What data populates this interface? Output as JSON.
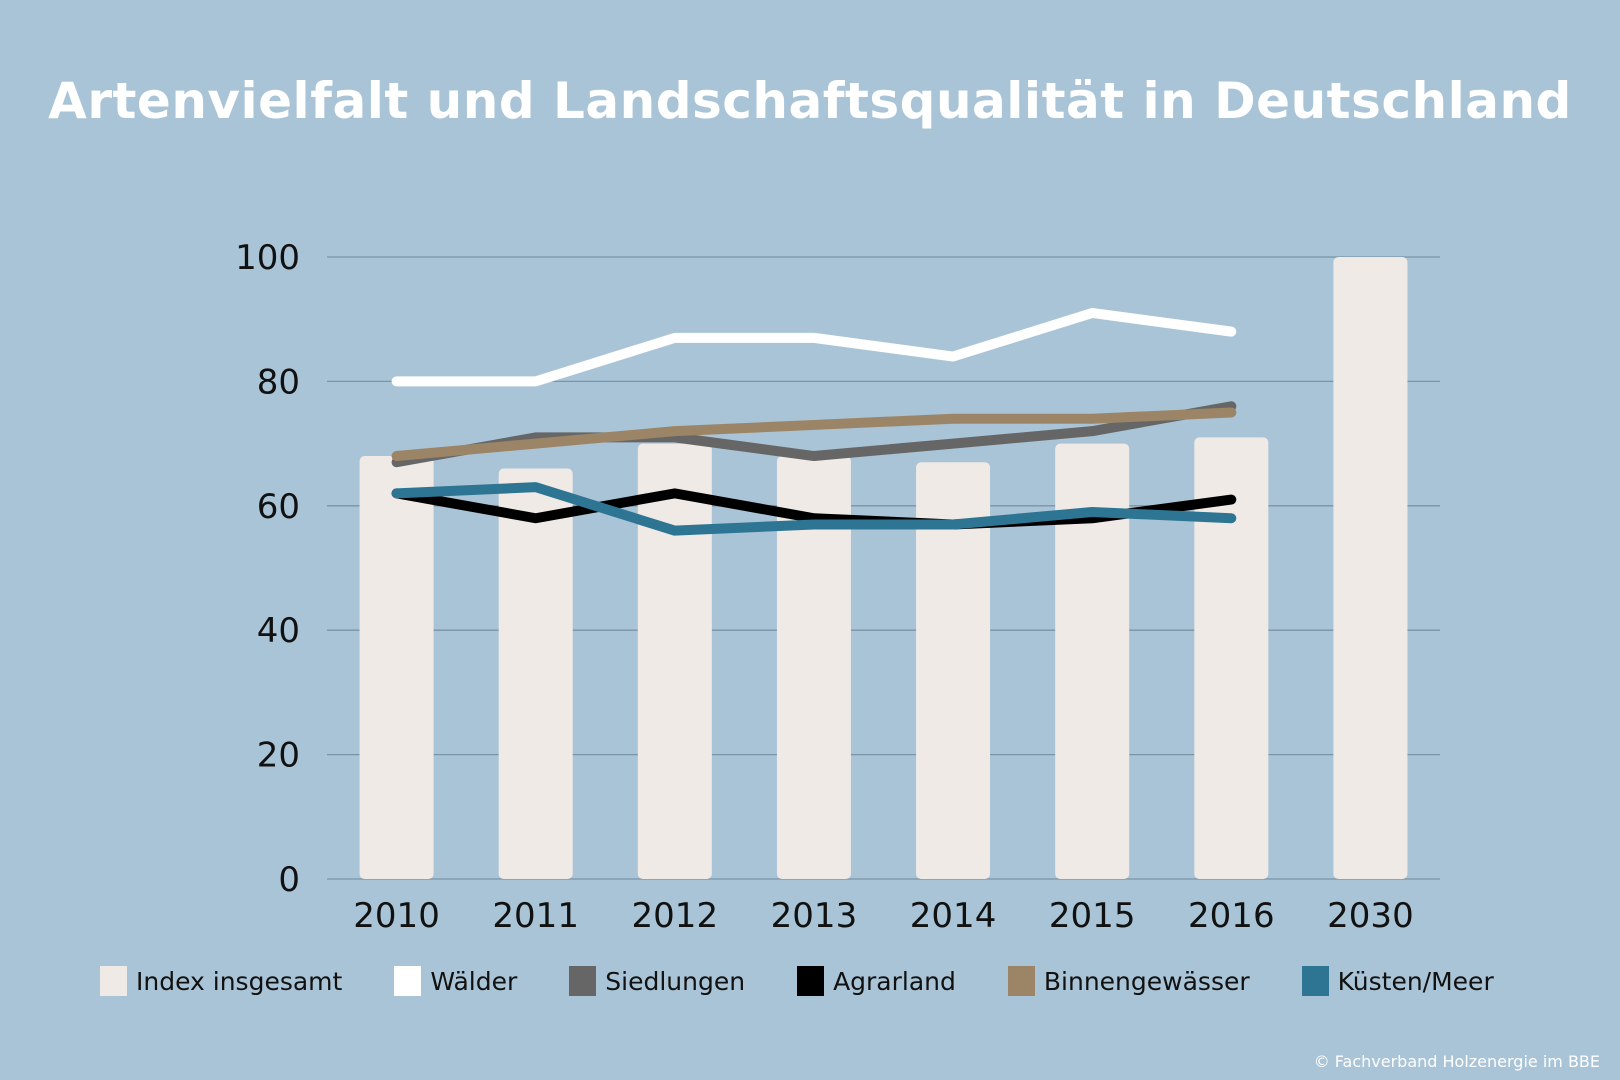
{
  "chart_data": {
    "type": "bar",
    "title": "Artenvielfalt und Landschaftsqualität in Deutschland",
    "xlabel": "",
    "ylabel": "",
    "ylim": [
      0,
      100
    ],
    "yticks": [
      "0",
      "20",
      "40",
      "60",
      "80",
      "100"
    ],
    "grid": true,
    "categories": [
      "2010",
      "2011",
      "2012",
      "2013",
      "2014",
      "2015",
      "2016",
      "2030"
    ],
    "bars": {
      "name": "Index insgesamt",
      "color": "#efeae6",
      "values": [
        68,
        66,
        70,
        68,
        67,
        70,
        71,
        100
      ]
    },
    "series": [
      {
        "name": "Wälder",
        "type": "line",
        "color": "#ffffff",
        "values": [
          80,
          80,
          87,
          87,
          84,
          91,
          88
        ]
      },
      {
        "name": "Siedlungen",
        "type": "line",
        "color": "#666666",
        "values": [
          67,
          71,
          71,
          68,
          70,
          72,
          76
        ]
      },
      {
        "name": "Agrarland",
        "type": "line",
        "color": "#000000",
        "values": [
          62,
          58,
          62,
          58,
          57,
          58,
          61
        ]
      },
      {
        "name": "Binnengewässer",
        "type": "line",
        "color": "#9c8566",
        "values": [
          68,
          70,
          72,
          73,
          74,
          74,
          75
        ]
      },
      {
        "name": "Küsten/Meer",
        "type": "line",
        "color": "#2e7593",
        "values": [
          62,
          63,
          56,
          57,
          57,
          59,
          58
        ]
      }
    ],
    "legend_position": "bottom"
  },
  "legend": [
    {
      "label": "Index insgesamt",
      "color": "#efeae6"
    },
    {
      "label": "Wälder",
      "color": "#ffffff"
    },
    {
      "label": "Siedlungen",
      "color": "#666666"
    },
    {
      "label": "Agrarland",
      "color": "#000000"
    },
    {
      "label": "Binnengewässer",
      "color": "#9c8566"
    },
    {
      "label": "Küsten/Meer",
      "color": "#2e7593"
    }
  ],
  "credit": "© Fachverband Holzenergie im BBE"
}
